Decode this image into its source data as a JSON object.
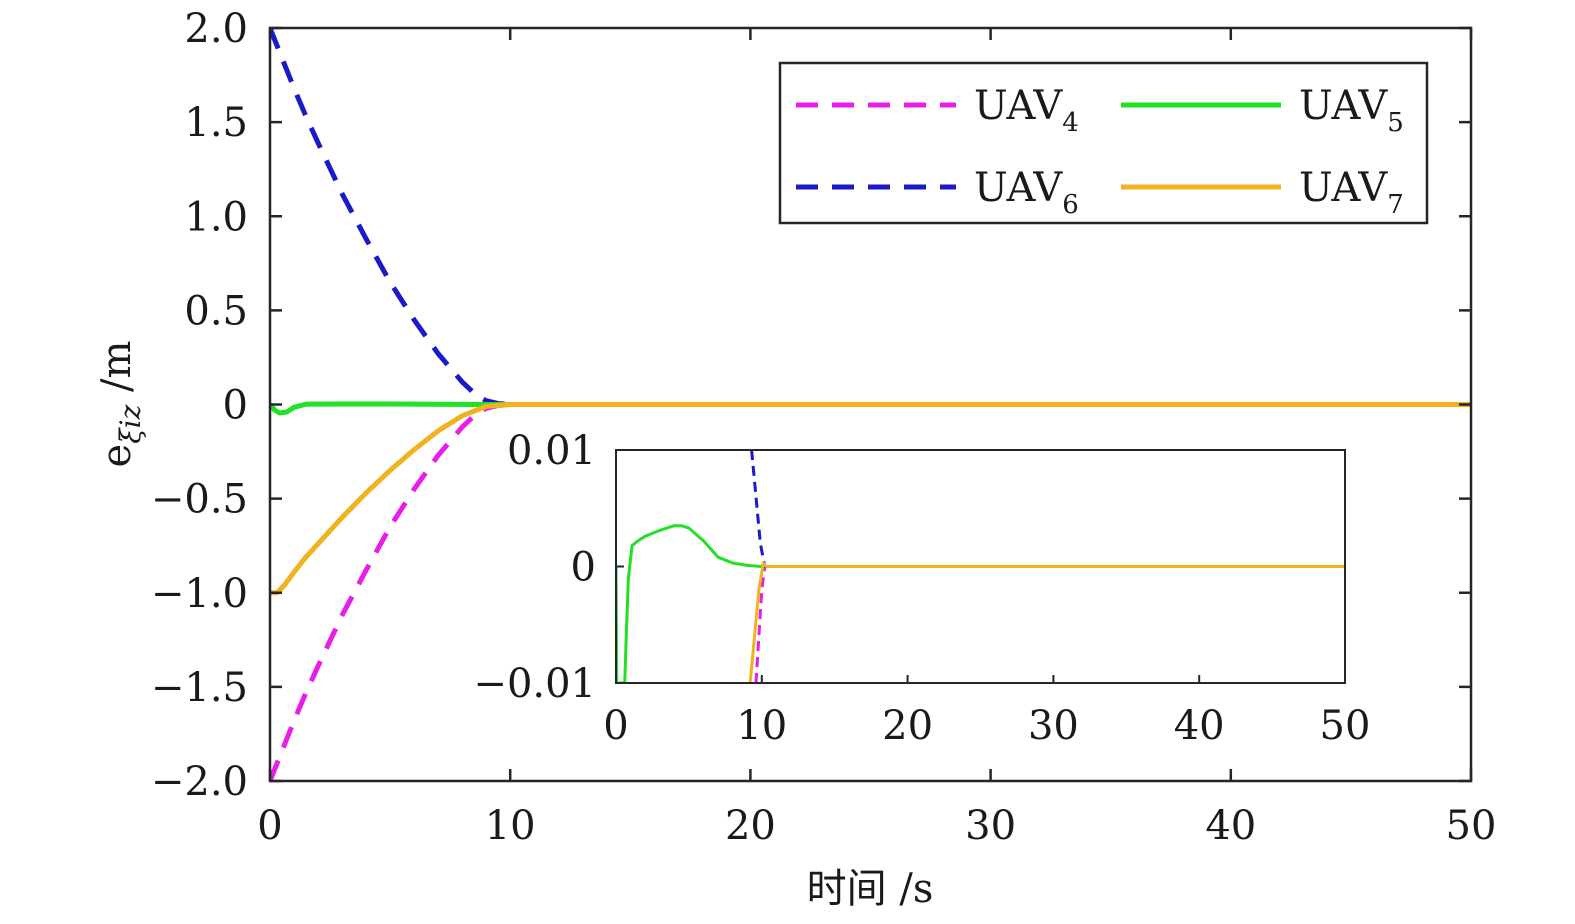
{
  "chart_data": [
    {
      "type": "line",
      "xlabel": "时间 /s",
      "ylabel": {
        "main": "e",
        "sub": "ξiz",
        "unit": "/m"
      },
      "xlim": [
        0,
        50
      ],
      "ylim": [
        -2.0,
        2.0
      ],
      "xticks": [
        "0",
        "10",
        "20",
        "30",
        "40",
        "50"
      ],
      "yticks": [
        "−2.0",
        "−1.5",
        "−1.0",
        "−0.5",
        "0",
        "0.5",
        "1.0",
        "1.5",
        "2.0"
      ],
      "legend_placement": "top-right",
      "series": [
        {
          "name": "UAV4",
          "label": "UAV",
          "sub": "4",
          "color": "#e81ee8",
          "style": "dashed",
          "x": [
            0,
            0.5,
            1,
            1.5,
            2,
            3,
            4,
            5,
            6,
            7,
            8,
            8.5,
            9,
            9.5,
            10,
            50
          ],
          "y": [
            -2.0,
            -1.84,
            -1.68,
            -1.53,
            -1.39,
            -1.12,
            -0.88,
            -0.65,
            -0.45,
            -0.27,
            -0.12,
            -0.06,
            -0.02,
            -0.005,
            0,
            0
          ]
        },
        {
          "name": "UAV5",
          "label": "UAV",
          "sub": "5",
          "color": "#22e022",
          "style": "solid",
          "x": [
            0,
            0.2,
            0.4,
            0.7,
            1,
            1.5,
            2,
            3,
            5,
            7,
            9,
            10,
            50
          ],
          "y": [
            0,
            -0.03,
            -0.045,
            -0.04,
            -0.015,
            0.002,
            0.002,
            0.003,
            0.003,
            0.001,
            0.0,
            0,
            0
          ]
        },
        {
          "name": "UAV6",
          "label": "UAV",
          "sub": "6",
          "color": "#1a1ac8",
          "style": "dashed",
          "x": [
            0,
            0.5,
            1,
            1.5,
            2,
            3,
            4,
            5,
            6,
            7,
            8,
            8.5,
            9,
            9.5,
            10,
            50
          ],
          "y": [
            2.0,
            1.84,
            1.68,
            1.53,
            1.39,
            1.12,
            0.88,
            0.65,
            0.45,
            0.27,
            0.12,
            0.06,
            0.02,
            0.005,
            0,
            0
          ]
        },
        {
          "name": "UAV7",
          "label": "UAV",
          "sub": "7",
          "color": "#f0b21e",
          "style": "solid",
          "x": [
            0,
            0.3,
            0.6,
            1,
            1.5,
            2,
            3,
            4,
            5,
            6,
            7,
            8,
            9,
            10,
            50
          ],
          "y": [
            -1.0,
            -1.0,
            -0.96,
            -0.89,
            -0.81,
            -0.74,
            -0.6,
            -0.47,
            -0.35,
            -0.24,
            -0.14,
            -0.06,
            -0.01,
            0,
            0
          ]
        }
      ]
    },
    {
      "type": "line",
      "inset": true,
      "xlim": [
        0,
        50
      ],
      "ylim": [
        -0.01,
        0.01
      ],
      "xticks": [
        "0",
        "10",
        "20",
        "30",
        "40",
        "50"
      ],
      "yticks": [
        "−0.01",
        "0",
        "0.01"
      ],
      "series": [
        {
          "name": "UAV4",
          "color": "#e81ee8",
          "style": "dashed",
          "x": [
            9.6,
            9.8,
            10.0,
            10.2,
            50
          ],
          "y": [
            -0.01,
            -0.006,
            -0.002,
            0,
            0
          ]
        },
        {
          "name": "UAV5",
          "color": "#22e022",
          "style": "solid",
          "x": [
            0,
            0.05,
            0.1,
            0.6,
            0.7,
            0.85,
            1.1,
            1.5,
            2,
            3,
            4,
            4.5,
            5,
            6,
            7,
            8,
            9,
            10,
            50
          ],
          "y": [
            0,
            -0.01,
            -0.01,
            -0.01,
            -0.006,
            -0.001,
            0.0018,
            0.0022,
            0.0026,
            0.0031,
            0.0035,
            0.0035,
            0.0033,
            0.0022,
            0.0008,
            0.0003,
            0.0001,
            0,
            0
          ]
        },
        {
          "name": "UAV6",
          "color": "#1a1ac8",
          "style": "dashed",
          "x": [
            9.3,
            9.6,
            9.9,
            10.2,
            50
          ],
          "y": [
            0.01,
            0.006,
            0.002,
            0,
            0
          ]
        },
        {
          "name": "UAV7",
          "color": "#f0b21e",
          "style": "solid",
          "x": [
            9.2,
            9.5,
            9.8,
            10.1,
            10.3,
            50
          ],
          "y": [
            -0.01,
            -0.006,
            -0.002,
            0.0003,
            0,
            0
          ]
        }
      ]
    }
  ]
}
